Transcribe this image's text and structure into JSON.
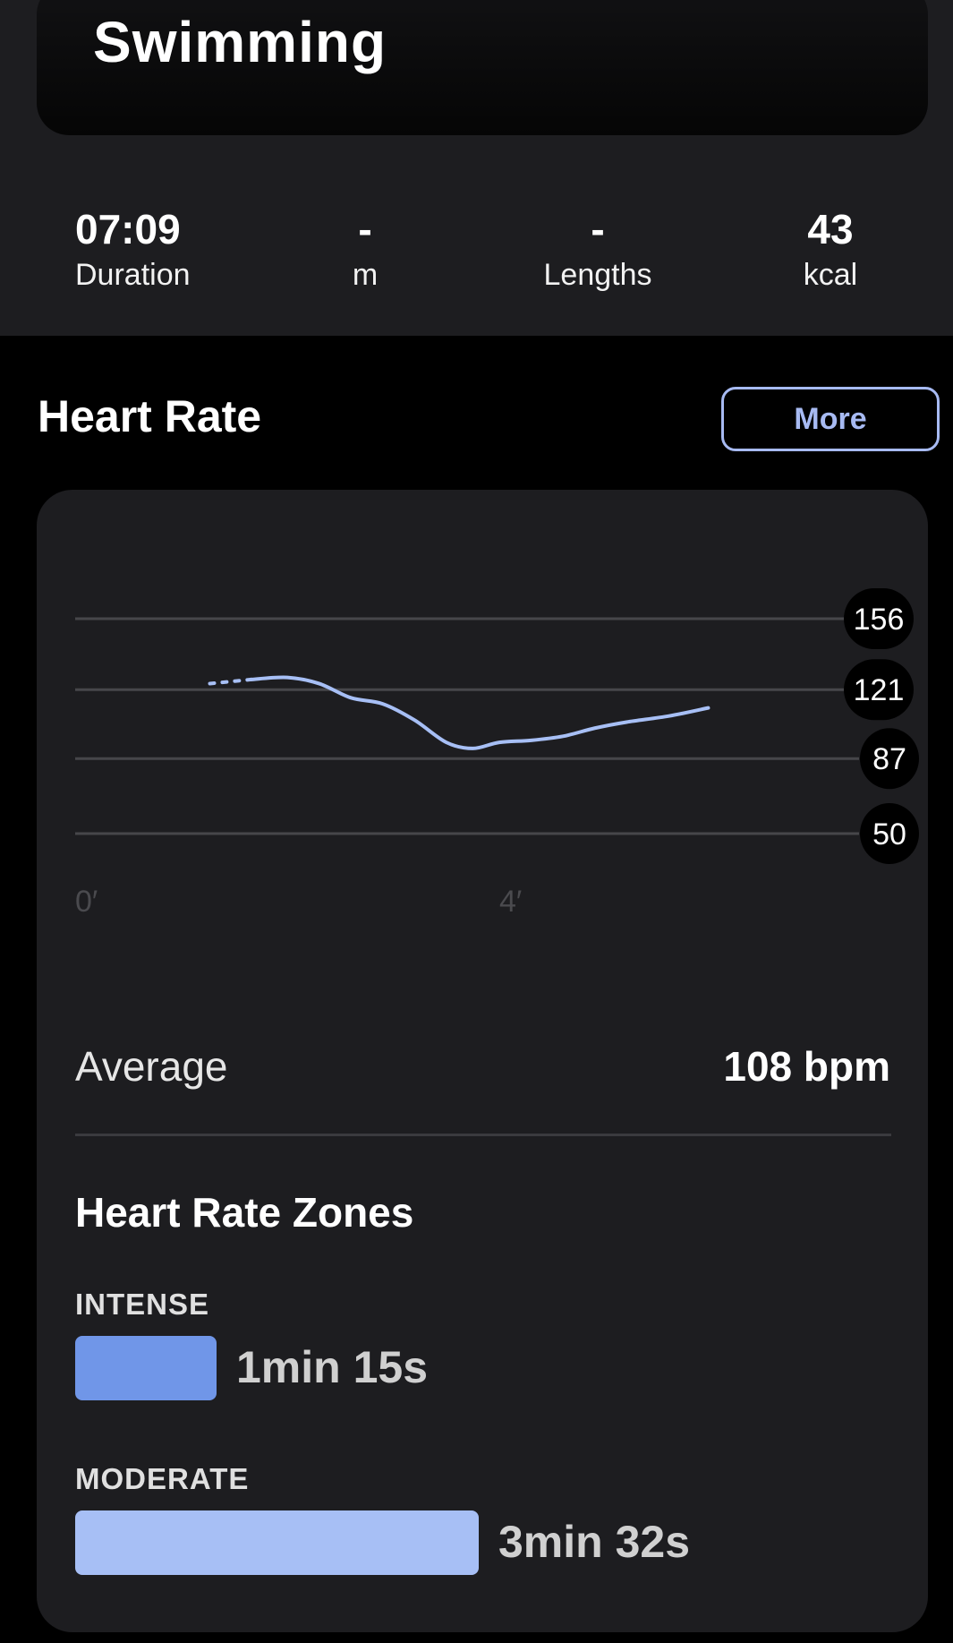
{
  "activity": {
    "title": "Swimming"
  },
  "stats": [
    {
      "value": "07:09",
      "label": "Duration"
    },
    {
      "value": "-",
      "label": "m"
    },
    {
      "value": "-",
      "label": "Lengths"
    },
    {
      "value": "43",
      "label": "kcal"
    }
  ],
  "heart_rate": {
    "title": "Heart Rate",
    "more_label": "More",
    "average_label": "Average",
    "average_value": "108 bpm",
    "zones_title": "Heart Rate Zones",
    "zones": [
      {
        "label": "INTENSE",
        "time": "1min 15s",
        "color": "#7096e8",
        "fraction": 0.35
      },
      {
        "label": "MODERATE",
        "time": "3min 32s",
        "color": "#a7bff5",
        "fraction": 1.0
      }
    ]
  },
  "chart_data": {
    "type": "line",
    "x_ticks": [
      "0′",
      "4′"
    ],
    "y_ticks": [
      156,
      121,
      87,
      50
    ],
    "line_color": "#a7bff5",
    "series": [
      {
        "dotted_x": [
          1.27,
          1.66
        ],
        "dotted_y": [
          124,
          126
        ],
        "x": [
          1.66,
          2.0,
          2.3,
          2.6,
          2.9,
          3.2,
          3.5,
          3.75,
          4.0,
          4.3,
          4.6,
          4.9,
          5.2,
          5.6,
          5.97
        ],
        "y": [
          126,
          127,
          124,
          117,
          114,
          106,
          95,
          92,
          95,
          96,
          98,
          102,
          105,
          108,
          112
        ]
      }
    ]
  }
}
